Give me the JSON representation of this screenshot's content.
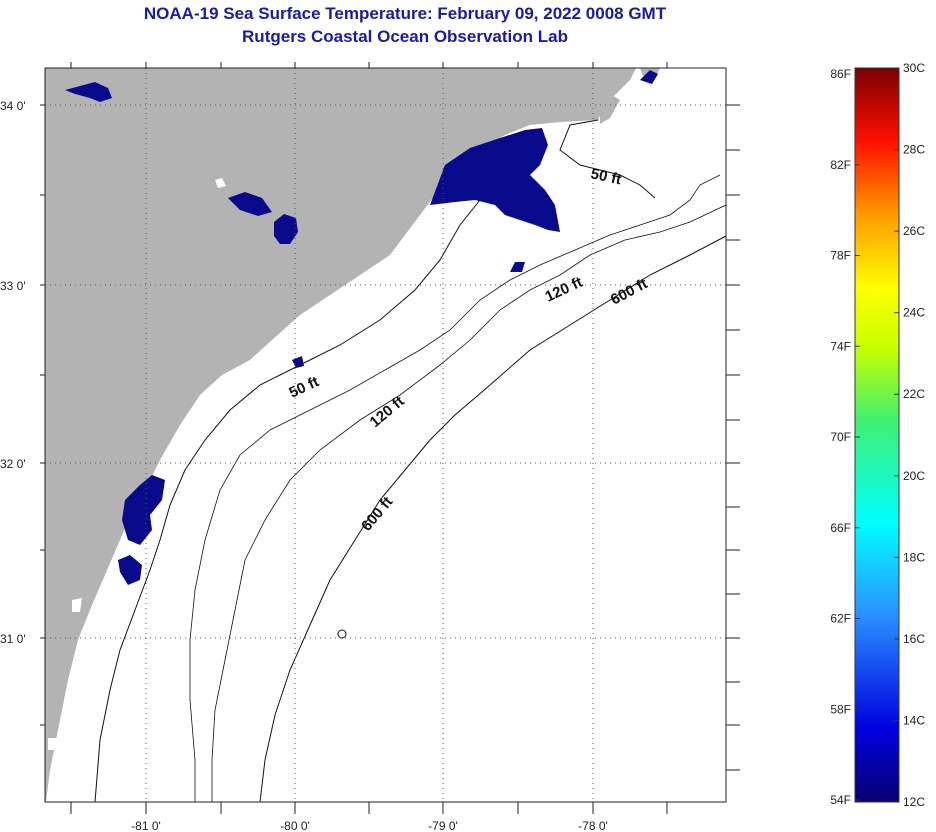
{
  "title": "NOAA-19 Sea Surface Temperature:  February 09, 2022 0008 GMT",
  "subtitle": "Rutgers Coastal Ocean Observation Lab",
  "lat_labels": [
    "34 0'",
    "33 0'",
    "32 0'",
    "31 0'"
  ],
  "lon_labels": [
    "-81 0'",
    "-80 0'",
    "-79 0'",
    "-78 0'"
  ],
  "contour_labels": [
    "50 ft",
    "50 ft",
    "120 ft",
    "120 ft",
    "600 ft",
    "600 ft"
  ],
  "colorbar": {
    "f_labels": [
      "86F",
      "82F",
      "78F",
      "74F",
      "70F",
      "66F",
      "62F",
      "58F",
      "54F"
    ],
    "c_labels": [
      "30C",
      "28C",
      "26C",
      "24C",
      "22C",
      "20C",
      "18C",
      "16C",
      "14C",
      "12C"
    ],
    "range_c": [
      12,
      30
    ],
    "range_f": [
      54,
      86
    ]
  },
  "colors": {
    "land": "#b3b3b3",
    "sst_cold": "#0a0a8c",
    "title": "#1a1aa6"
  }
}
